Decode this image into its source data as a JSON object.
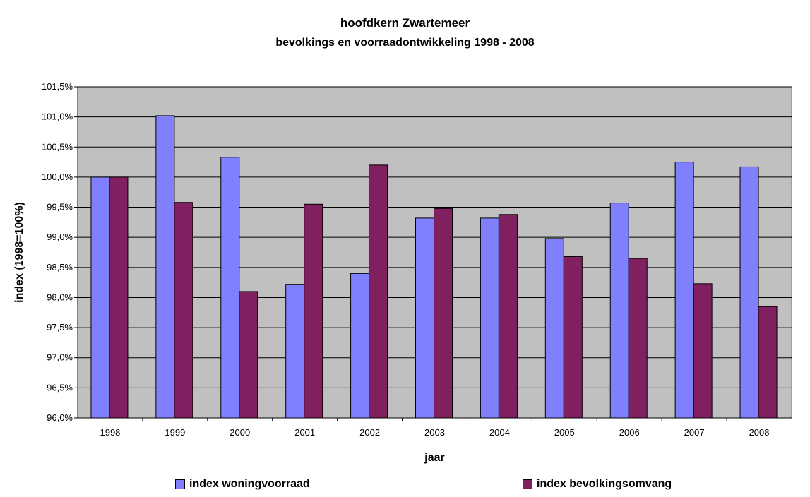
{
  "chart_data": {
    "type": "bar",
    "title": "hoofdkern Zwartemeer",
    "subtitle": "bevolkings en voorraadontwikkeling 1998 - 2008",
    "xlabel": "jaar",
    "ylabel": "index (1998=100%)",
    "ylim": [
      96.0,
      101.5
    ],
    "yticks": [
      "96,0%",
      "96,5%",
      "97,0%",
      "97,5%",
      "98,0%",
      "98,5%",
      "99,0%",
      "99,5%",
      "100,0%",
      "100,5%",
      "101,0%",
      "101,5%"
    ],
    "categories": [
      "1998",
      "1999",
      "2000",
      "2001",
      "2002",
      "2003",
      "2004",
      "2005",
      "2006",
      "2007",
      "2008"
    ],
    "grid": true,
    "legend_position": "bottom",
    "series": [
      {
        "name": "index woningvoorraad",
        "color": "#8080ff",
        "values": [
          100.0,
          101.02,
          100.33,
          98.22,
          98.4,
          99.32,
          99.32,
          98.98,
          99.57,
          100.25,
          100.17
        ]
      },
      {
        "name": "index bevolkingsomvang",
        "color": "#802060",
        "values": [
          100.0,
          99.58,
          98.1,
          99.55,
          100.2,
          99.48,
          99.38,
          98.68,
          98.65,
          98.23,
          97.85
        ]
      }
    ],
    "plot_background": "#c0c0c0"
  }
}
